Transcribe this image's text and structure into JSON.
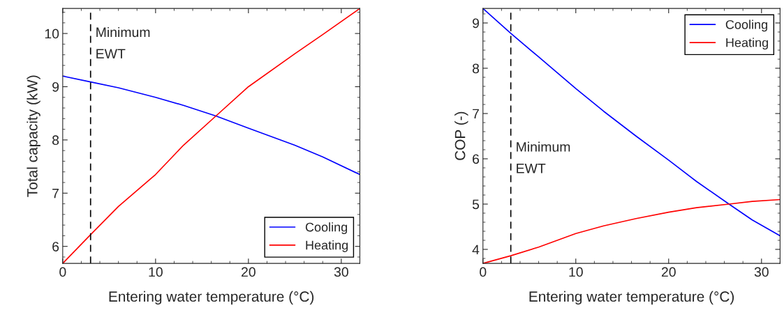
{
  "chart_data": [
    {
      "type": "line",
      "xlabel": "Entering water temperature (°C)",
      "ylabel": "Total capacity (kW)",
      "x": [
        0,
        3,
        6,
        10,
        13,
        16.5,
        20,
        25,
        28,
        32
      ],
      "series": [
        {
          "name": "Cooling",
          "color": "#0000ff",
          "values": [
            9.2,
            9.09,
            8.98,
            8.8,
            8.65,
            8.45,
            8.22,
            7.9,
            7.68,
            7.35
          ]
        },
        {
          "name": "Heating",
          "color": "#ff0000",
          "values": [
            5.68,
            6.22,
            6.75,
            7.35,
            7.9,
            8.45,
            9.0,
            9.62,
            9.98,
            10.47
          ]
        }
      ],
      "xlim": [
        0,
        32
      ],
      "ylim": [
        5.68,
        10.47
      ],
      "xticks": [
        0,
        10,
        20,
        30
      ],
      "yticks": [
        6,
        7,
        8,
        9,
        10
      ],
      "ref_lines": [
        {
          "axis": "x",
          "value": 3,
          "color": "#000000",
          "line_style": "dashed"
        }
      ],
      "annotations": [
        {
          "text": "Minimum\nEWT",
          "x": 3,
          "y": 9.8
        }
      ],
      "legend": "bottom right",
      "grid": false
    },
    {
      "type": "line",
      "xlabel": "Entering water temperature (°C)",
      "ylabel": "COP (-)",
      "x": [
        0,
        3,
        6,
        10,
        13,
        16.5,
        20,
        23,
        26.5,
        29,
        32
      ],
      "series": [
        {
          "name": "Cooling",
          "color": "#0000ff",
          "values": [
            9.32,
            8.77,
            8.25,
            7.55,
            7.05,
            6.5,
            5.97,
            5.5,
            5.0,
            4.65,
            4.3
          ]
        },
        {
          "name": "Heating",
          "color": "#ff0000",
          "values": [
            3.69,
            3.86,
            4.05,
            4.35,
            4.52,
            4.68,
            4.82,
            4.92,
            5.0,
            5.06,
            5.1
          ]
        }
      ],
      "xlim": [
        0,
        32
      ],
      "ylim": [
        3.69,
        9.32
      ],
      "xticks": [
        0,
        10,
        20,
        30
      ],
      "yticks": [
        4,
        5,
        6,
        7,
        8,
        9
      ],
      "ref_lines": [
        {
          "axis": "x",
          "value": 3,
          "color": "#000000",
          "line_style": "dashed"
        }
      ],
      "annotations": [
        {
          "text": "Minimum\nEWT",
          "x": 3,
          "y": 6.0
        }
      ],
      "legend": "top right",
      "grid": false
    }
  ]
}
